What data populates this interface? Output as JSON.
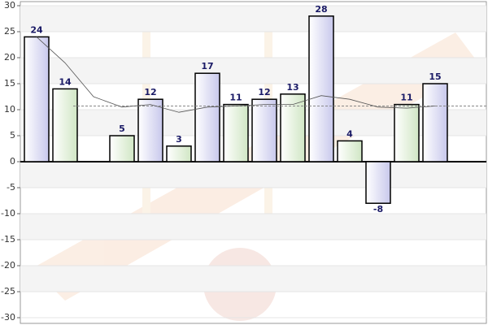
{
  "chart_data": {
    "type": "bar",
    "series": [
      {
        "values": [
          24,
          14,
          null,
          5,
          12,
          3,
          17,
          11,
          12,
          13,
          28,
          4,
          -8,
          11,
          15
        ],
        "colors": [
          "#d4d4ee",
          "#d8eacf"
        ]
      }
    ],
    "trend": [
      24,
      19,
      12.5,
      10.5,
      11,
      9.5,
      10.5,
      10.7,
      11,
      11,
      12.7,
      12,
      10.5,
      10.3,
      10.7
    ],
    "average": 10.7,
    "ylim": [
      -30,
      30
    ],
    "yticks": [
      -30,
      -25,
      -20,
      -15,
      -10,
      -5,
      0,
      5,
      10,
      15,
      20,
      25,
      30
    ],
    "grid": true
  }
}
